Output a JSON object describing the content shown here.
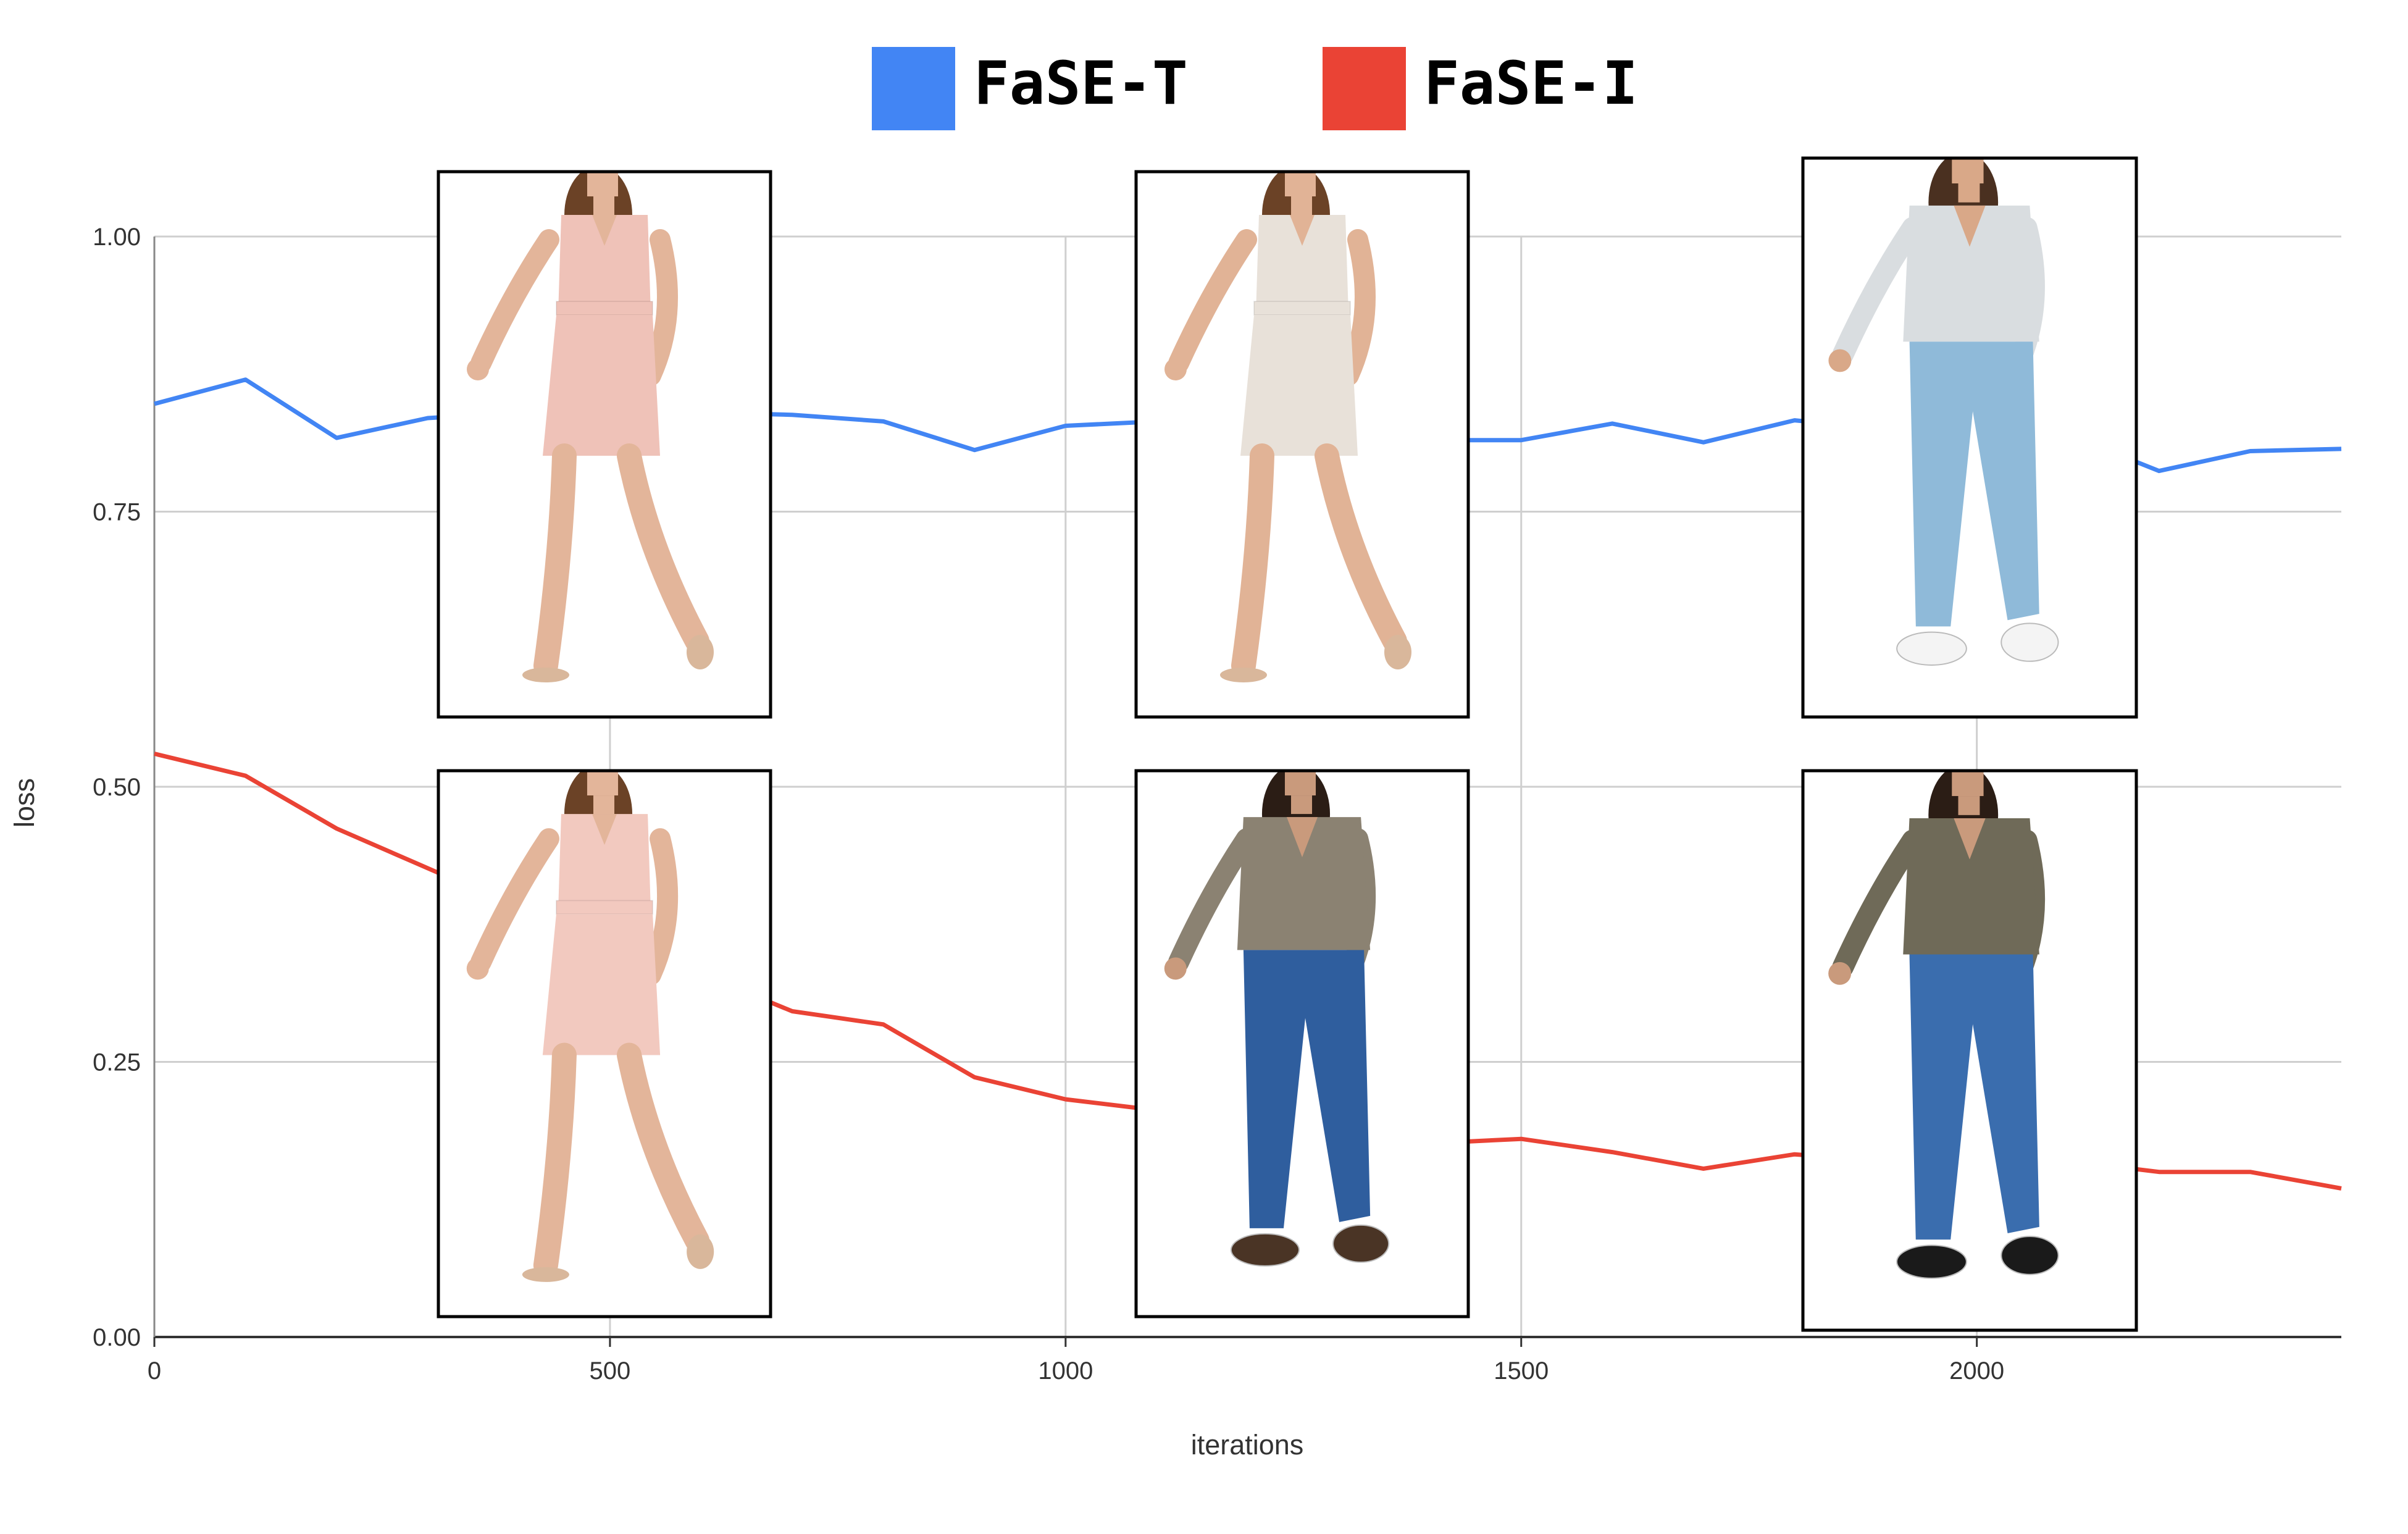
{
  "chart_data": {
    "type": "line",
    "xlabel": "iterations",
    "ylabel": "loss",
    "xlim": [
      0,
      2400
    ],
    "ylim": [
      0,
      1
    ],
    "x_ticks": [
      {
        "value": 0,
        "label": "0"
      },
      {
        "value": 500,
        "label": "500"
      },
      {
        "value": 1000,
        "label": "1000"
      },
      {
        "value": 1500,
        "label": "1500"
      },
      {
        "value": 2000,
        "label": "2000"
      }
    ],
    "y_ticks": [
      {
        "value": 0,
        "label": "0.00"
      },
      {
        "value": 0.25,
        "label": "0.25"
      },
      {
        "value": 0.5,
        "label": "0.50"
      },
      {
        "value": 0.75,
        "label": "0.75"
      },
      {
        "value": 1,
        "label": "1.00"
      }
    ],
    "grid": true,
    "legend_placement": "top-center",
    "x": [
      0,
      100,
      200,
      300,
      400,
      500,
      600,
      700,
      800,
      900,
      1000,
      1100,
      1200,
      1300,
      1400,
      1500,
      1600,
      1700,
      1800,
      1900,
      2000,
      2100,
      2200,
      2300,
      2400
    ],
    "series": [
      {
        "name": "FaSE-T",
        "color": "#4285F4",
        "values": [
          0.848,
          0.87,
          0.817,
          0.835,
          0.84,
          0.845,
          0.84,
          0.838,
          0.832,
          0.806,
          0.828,
          0.832,
          0.83,
          0.828,
          0.815,
          0.815,
          0.83,
          0.813,
          0.833,
          0.825,
          0.83,
          0.82,
          0.787,
          0.805,
          0.807
        ]
      },
      {
        "name": "FaSE-I",
        "color": "#EA4335",
        "values": [
          0.53,
          0.51,
          0.462,
          0.426,
          0.39,
          0.36,
          0.33,
          0.296,
          0.284,
          0.236,
          0.216,
          0.206,
          0.195,
          0.185,
          0.176,
          0.18,
          0.168,
          0.153,
          0.166,
          0.16,
          0.163,
          0.16,
          0.15,
          0.15,
          0.135
        ]
      }
    ],
    "inset_images": [
      {
        "row": "top",
        "outfit": "pink-dress",
        "colors": {
          "garment": "#EFC2B8",
          "skin": "#E3B59A",
          "hair": "#6B4226",
          "shoe": "#D9B79B"
        }
      },
      {
        "row": "top",
        "outfit": "beige-top-and-skirt",
        "colors": {
          "garment": "#E8E1D9",
          "skin": "#E1B396",
          "hair": "#6B4226",
          "shoe": "#D9B79B"
        }
      },
      {
        "row": "top",
        "outfit": "grey-top-light-jeans",
        "colors": {
          "garment": "#D9DDE0",
          "pants": "#8FBAD9",
          "skin": "#D9A888",
          "hair": "#4A3020",
          "shoe": "#F4F4F4"
        }
      },
      {
        "row": "bottom",
        "outfit": "pink-dress",
        "colors": {
          "garment": "#F2C9BF",
          "skin": "#E3B59A",
          "hair": "#6B4226",
          "shoe": "#D9B79B"
        }
      },
      {
        "row": "bottom",
        "outfit": "khaki-blouse-dark-jeans",
        "colors": {
          "garment": "#8B8272",
          "pants": "#2F5E9E",
          "skin": "#C99A7C",
          "hair": "#2B1D15",
          "shoe": "#4A3425"
        }
      },
      {
        "row": "bottom",
        "outfit": "olive-jacket-dark-jeans",
        "colors": {
          "garment": "#6F6A58",
          "pants": "#3A6DAE",
          "skin": "#C99A7C",
          "hair": "#2B1D15",
          "shoe": "#1A1A1A"
        }
      }
    ]
  }
}
